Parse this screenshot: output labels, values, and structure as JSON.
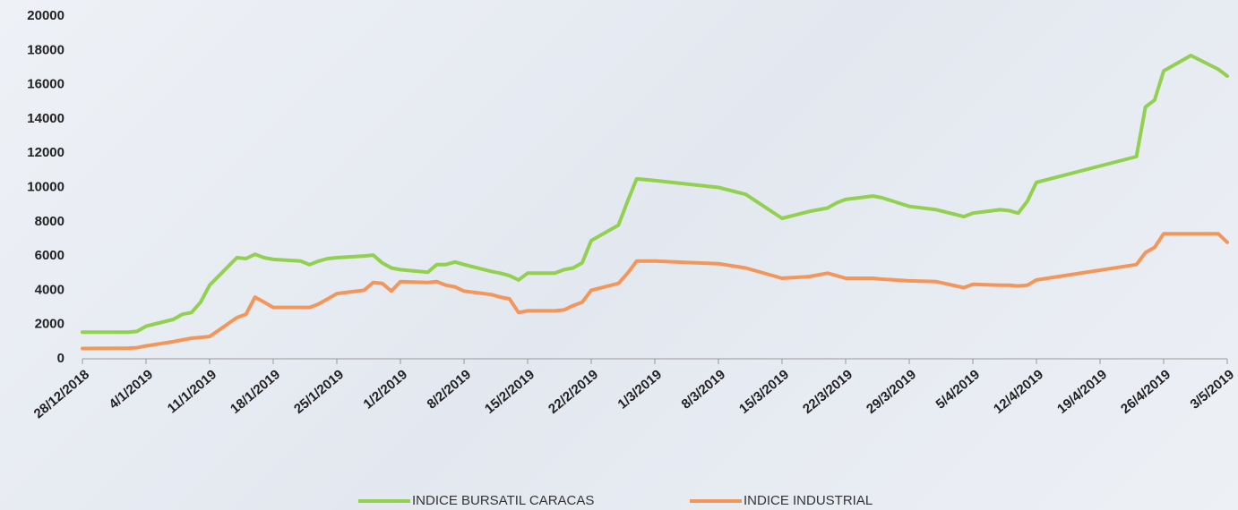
{
  "chart_data": {
    "type": "line",
    "x": [
      "28/12/2018",
      "2/1/2019",
      "3/1/2019",
      "4/1/2019",
      "7/1/2019",
      "8/1/2019",
      "9/1/2019",
      "10/1/2019",
      "11/1/2019",
      "14/1/2019",
      "15/1/2019",
      "16/1/2019",
      "17/1/2019",
      "18/1/2019",
      "21/1/2019",
      "22/1/2019",
      "23/1/2019",
      "24/1/2019",
      "25/1/2019",
      "28/1/2019",
      "29/1/2019",
      "30/1/2019",
      "31/1/2019",
      "1/2/2019",
      "4/2/2019",
      "5/2/2019",
      "6/2/2019",
      "7/2/2019",
      "8/2/2019",
      "11/2/2019",
      "12/2/2019",
      "13/2/2019",
      "14/2/2019",
      "15/2/2019",
      "18/2/2019",
      "19/2/2019",
      "20/2/2019",
      "21/2/2019",
      "22/2/2019",
      "25/2/2019",
      "26/2/2019",
      "27/2/2019",
      "1/3/2019",
      "8/3/2019",
      "11/3/2019",
      "15/3/2019",
      "18/3/2019",
      "20/3/2019",
      "21/3/2019",
      "22/3/2019",
      "25/3/2019",
      "26/3/2019",
      "29/3/2019",
      "1/4/2019",
      "4/4/2019",
      "5/4/2019",
      "8/4/2019",
      "9/4/2019",
      "10/4/2019",
      "11/4/2019",
      "12/4/2019",
      "23/4/2019",
      "24/4/2019",
      "25/4/2019",
      "26/4/2019",
      "29/4/2019",
      "2/5/2019",
      "3/5/2019"
    ],
    "series": [
      {
        "name": "INDICE BURSATIL CARACAS",
        "color": "#92d050",
        "values": [
          1550,
          1550,
          1600,
          1900,
          2300,
          2600,
          2700,
          3300,
          4300,
          5900,
          5850,
          6100,
          5900,
          5800,
          5700,
          5500,
          5700,
          5850,
          5900,
          6000,
          6050,
          5600,
          5300,
          5200,
          5050,
          5500,
          5500,
          5650,
          5500,
          5100,
          5000,
          4850,
          4600,
          5000,
          5000,
          5200,
          5300,
          5600,
          6900,
          7800,
          9200,
          10500,
          10400,
          10000,
          9600,
          8200,
          8600,
          8800,
          9100,
          9300,
          9500,
          9400,
          8900,
          8700,
          8300,
          8500,
          8700,
          8650,
          8500,
          9200,
          10300,
          11800,
          14700,
          15100,
          16800,
          17700,
          16900,
          16500
        ]
      },
      {
        "name": "INDICE INDUSTRIAL",
        "color": "#f4965a",
        "values": [
          600,
          620,
          650,
          750,
          1000,
          1100,
          1200,
          1250,
          1300,
          2400,
          2600,
          3600,
          3300,
          3000,
          3000,
          3000,
          3200,
          3500,
          3800,
          4000,
          4450,
          4400,
          3950,
          4500,
          4450,
          4500,
          4300,
          4200,
          3950,
          3750,
          3600,
          3500,
          2700,
          2800,
          2800,
          2850,
          3100,
          3300,
          4000,
          4400,
          5000,
          5700,
          5700,
          5550,
          5300,
          4700,
          4800,
          5000,
          4850,
          4700,
          4700,
          4650,
          4550,
          4500,
          4150,
          4350,
          4300,
          4300,
          4250,
          4300,
          4600,
          5500,
          6200,
          6500,
          7300,
          7300,
          7300,
          6800
        ]
      }
    ],
    "xlim": [
      "28/12/2018",
      "3/5/2019"
    ],
    "xticks": [
      "28/12/2018",
      "4/1/2019",
      "11/1/2019",
      "18/1/2019",
      "25/1/2019",
      "1/2/2019",
      "8/2/2019",
      "15/2/2019",
      "22/2/2019",
      "1/3/2019",
      "8/3/2019",
      "15/3/2019",
      "22/3/2019",
      "29/3/2019",
      "5/4/2019",
      "12/4/2019",
      "19/4/2019",
      "26/4/2019",
      "3/5/2019"
    ],
    "ylim": [
      0,
      20000
    ],
    "yticks": [
      0,
      2000,
      4000,
      6000,
      8000,
      10000,
      12000,
      14000,
      16000,
      18000,
      20000
    ],
    "grid": false,
    "legend": "bottom"
  }
}
